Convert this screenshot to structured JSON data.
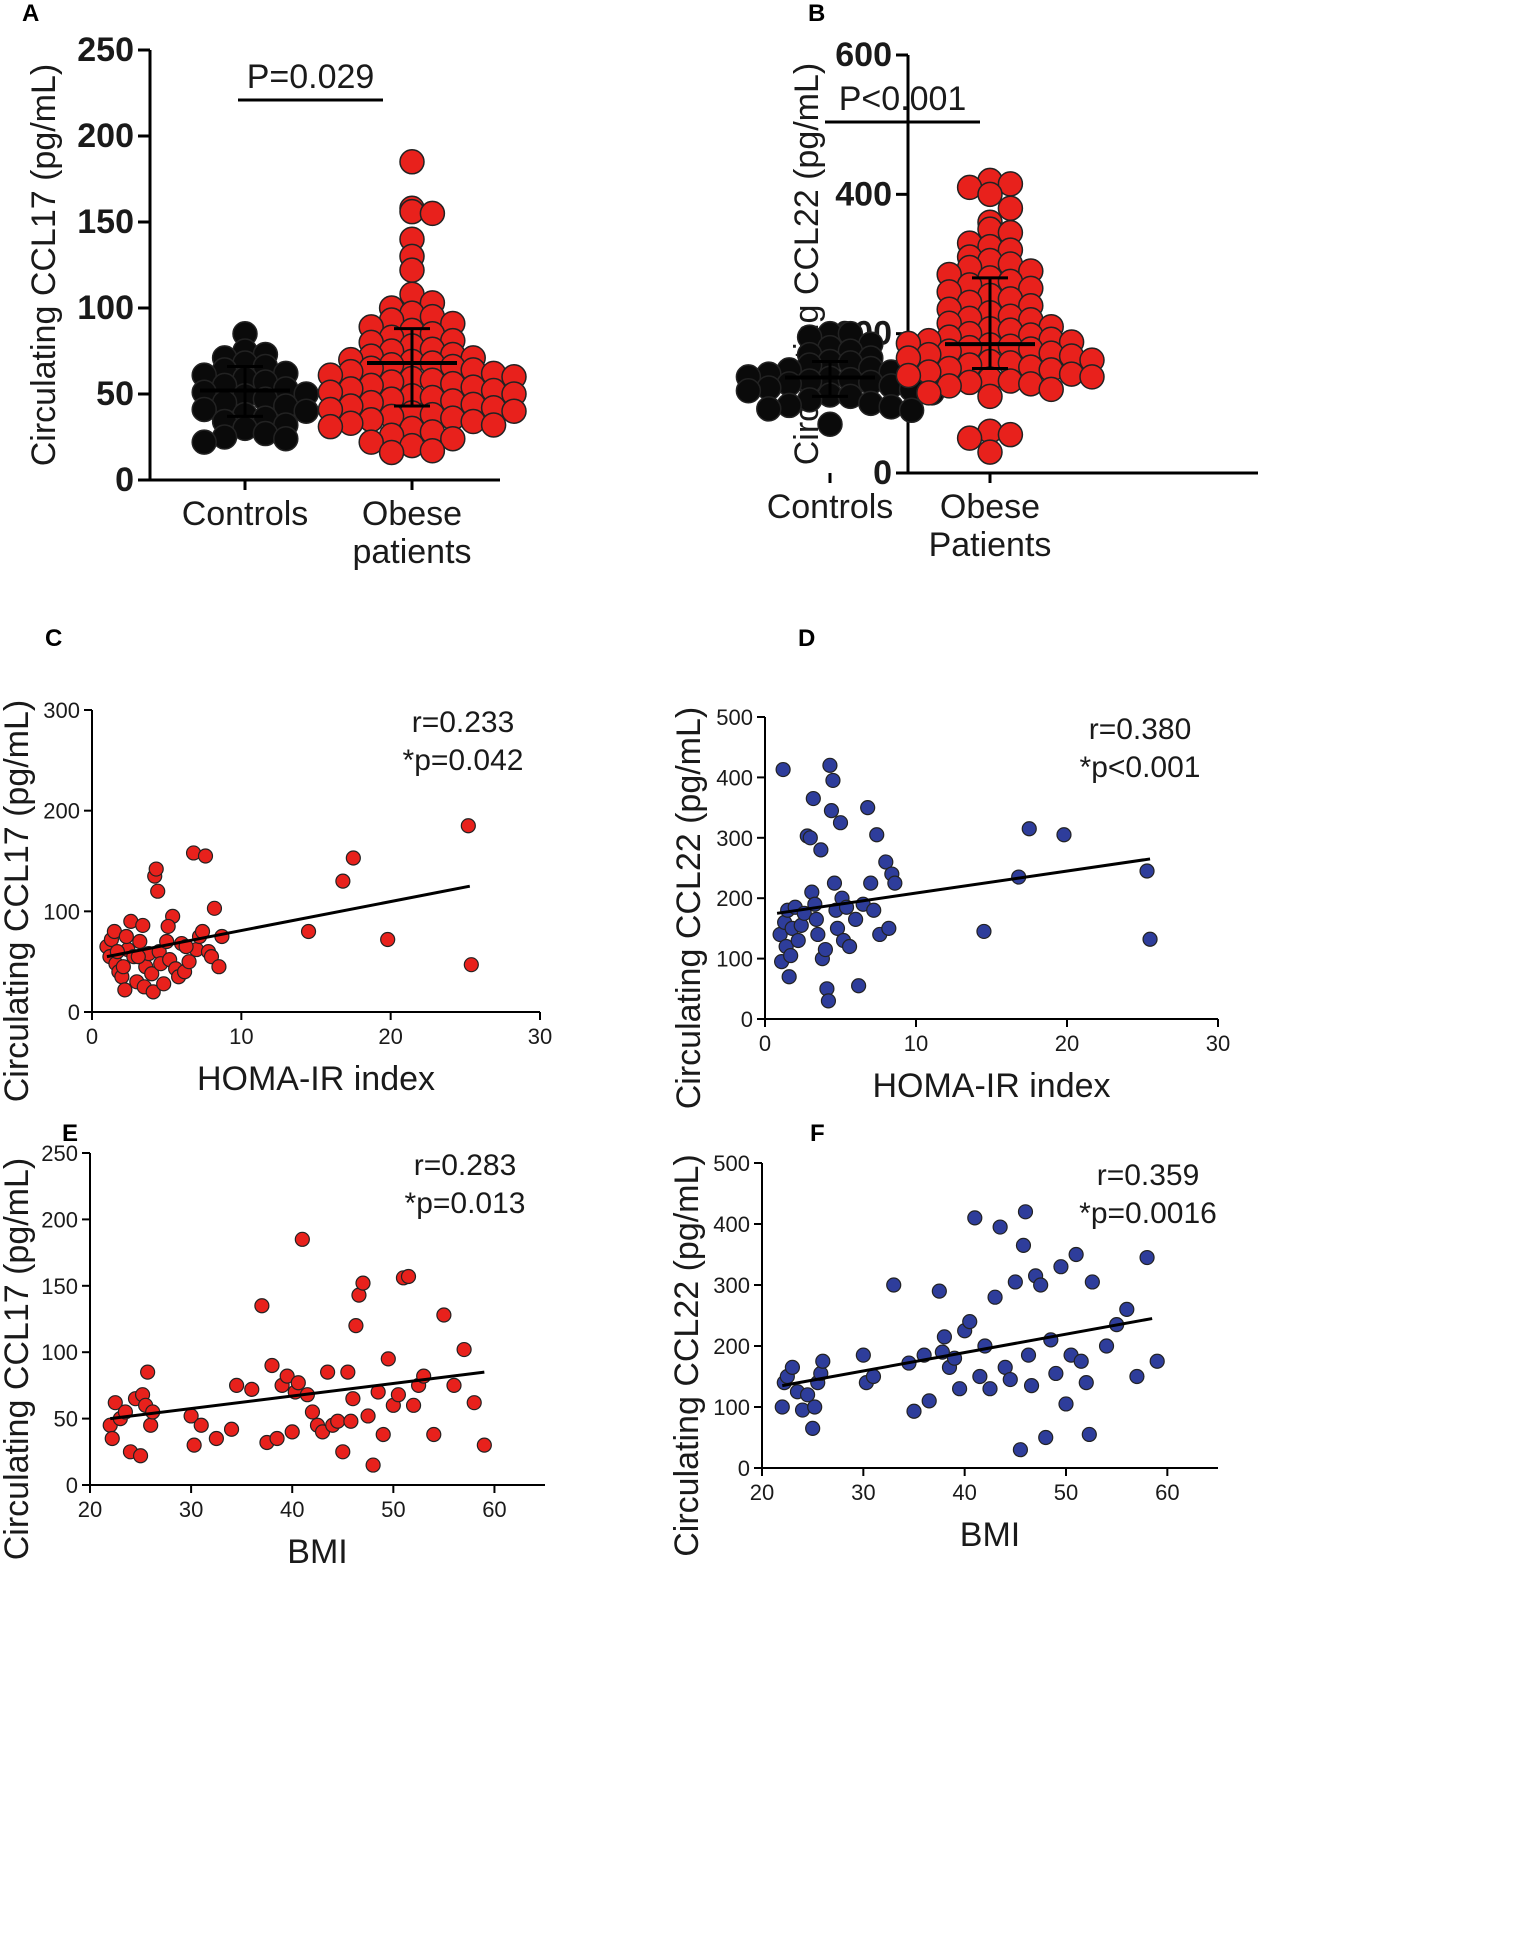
{
  "figure": {
    "panels": [
      "A",
      "B",
      "C",
      "D",
      "E",
      "F"
    ]
  },
  "colors": {
    "control": "#0a0a0a",
    "obese": "#e8211c",
    "ccl22_scatter": "#2e3d9b",
    "axis": "#000000"
  },
  "chart_data": [
    {
      "id": "A",
      "type": "scatter",
      "subtype": "dot-plot",
      "ylabel": "Circulating CCL17 (pg/mL)",
      "ylim": [
        0,
        250
      ],
      "yticks": [
        "0",
        "50",
        "100",
        "150",
        "200",
        "250"
      ],
      "categories": [
        "Controls",
        "Obese\npatients"
      ],
      "p_text": "P=0.029",
      "series": [
        {
          "name": "Controls",
          "color": "#0a0a0a",
          "median": 52,
          "iqr": [
            37,
            66
          ],
          "values": [
            85,
            75,
            73,
            71,
            68,
            66,
            64,
            62,
            61,
            59,
            57,
            55,
            53,
            51,
            50,
            49,
            47,
            45,
            43,
            41,
            40,
            38,
            36,
            34,
            32,
            30,
            27,
            25,
            24,
            22
          ]
        },
        {
          "name": "Obese patients",
          "color": "#e8211c",
          "median": 68,
          "iqr": [
            43,
            88
          ],
          "values": [
            185,
            158,
            156,
            155,
            140,
            130,
            122,
            108,
            103,
            100,
            97,
            95,
            93,
            91,
            89,
            87,
            85,
            83,
            81,
            80,
            78,
            76,
            75,
            73,
            72,
            71,
            70,
            69,
            68,
            67,
            66,
            65,
            64,
            63,
            62,
            61,
            60,
            59,
            58,
            57,
            56,
            55,
            54,
            53,
            52,
            51,
            50,
            49,
            48,
            47,
            46,
            45,
            44,
            43,
            42,
            41,
            40,
            39,
            38,
            37,
            36,
            35,
            34,
            33,
            32,
            31,
            30,
            28,
            26,
            24,
            22,
            20,
            17,
            16
          ]
        }
      ]
    },
    {
      "id": "B",
      "type": "scatter",
      "subtype": "dot-plot",
      "ylabel": "Circulating CCL22 (pg/mL)",
      "ylim": [
        0,
        600
      ],
      "yticks": [
        "0",
        "200",
        "400",
        "600"
      ],
      "categories": [
        "Controls",
        "Obese\nPatients"
      ],
      "p_text": "P<0.001",
      "series": [
        {
          "name": "Controls",
          "color": "#0a0a0a",
          "median": 137,
          "iqr": [
            110,
            160
          ],
          "values": [
            200,
            200,
            195,
            185,
            180,
            175,
            170,
            165,
            160,
            158,
            155,
            150,
            148,
            145,
            142,
            140,
            138,
            136,
            134,
            132,
            130,
            128,
            125,
            122,
            120,
            118,
            115,
            112,
            110,
            105,
            100,
            97,
            95,
            92,
            90,
            70
          ]
        },
        {
          "name": "Obese Patients",
          "color": "#e8211c",
          "median": 185,
          "iqr": [
            150,
            280
          ],
          "values": [
            420,
            415,
            410,
            400,
            380,
            360,
            350,
            345,
            330,
            325,
            320,
            310,
            305,
            300,
            295,
            290,
            285,
            280,
            275,
            270,
            265,
            260,
            255,
            250,
            245,
            240,
            235,
            230,
            225,
            222,
            220,
            215,
            210,
            207,
            205,
            200,
            198,
            195,
            192,
            190,
            188,
            186,
            184,
            182,
            180,
            178,
            175,
            172,
            170,
            168,
            165,
            162,
            160,
            158,
            155,
            152,
            150,
            148,
            145,
            142,
            140,
            138,
            135,
            132,
            130,
            128,
            125,
            120,
            115,
            110,
            60,
            55,
            50,
            30
          ]
        }
      ]
    },
    {
      "id": "C",
      "type": "scatter",
      "xlabel": "HOMA-IR index",
      "ylabel": "Circulating CCL17 (pg/mL)",
      "xlim": [
        0,
        30
      ],
      "ylim": [
        0,
        300
      ],
      "xticks": [
        "0",
        "10",
        "20",
        "30"
      ],
      "yticks": [
        "0",
        "100",
        "200",
        "300"
      ],
      "stat_r": "r=0.233",
      "stat_p": "*p=0.042",
      "color": "#e8211c",
      "fit": {
        "x": [
          1,
          25.3
        ],
        "y": [
          55,
          125
        ]
      },
      "points": [
        [
          1,
          65
        ],
        [
          1.2,
          55
        ],
        [
          1.3,
          72
        ],
        [
          1.5,
          80
        ],
        [
          1.6,
          48
        ],
        [
          1.8,
          40
        ],
        [
          2,
          35
        ],
        [
          2.2,
          22
        ],
        [
          2.4,
          62
        ],
        [
          2.6,
          90
        ],
        [
          2.8,
          55
        ],
        [
          3,
          30
        ],
        [
          3.2,
          70
        ],
        [
          3.4,
          86
        ],
        [
          3.5,
          25
        ],
        [
          3.6,
          45
        ],
        [
          3.8,
          58
        ],
        [
          4,
          38
        ],
        [
          4.1,
          20
        ],
        [
          4.2,
          135
        ],
        [
          4.3,
          142
        ],
        [
          4.4,
          120
        ],
        [
          4.5,
          60
        ],
        [
          4.6,
          48
        ],
        [
          4.8,
          28
        ],
        [
          5,
          70
        ],
        [
          5.2,
          52
        ],
        [
          5.4,
          95
        ],
        [
          5.6,
          43
        ],
        [
          5.8,
          35
        ],
        [
          6,
          68
        ],
        [
          6.2,
          40
        ],
        [
          6.5,
          50
        ],
        [
          6.8,
          158
        ],
        [
          7,
          62
        ],
        [
          7.2,
          75
        ],
        [
          7.4,
          80
        ],
        [
          7.6,
          155
        ],
        [
          7.8,
          60
        ],
        [
          8,
          55
        ],
        [
          8.2,
          103
        ],
        [
          8.5,
          45
        ],
        [
          8.7,
          75
        ],
        [
          2.3,
          75
        ],
        [
          3.1,
          55
        ],
        [
          1.7,
          60
        ],
        [
          2.1,
          45
        ],
        [
          5.1,
          85
        ],
        [
          6.3,
          65
        ],
        [
          14.5,
          80
        ],
        [
          16.8,
          130
        ],
        [
          17.5,
          153
        ],
        [
          19.8,
          72
        ],
        [
          25.2,
          185
        ],
        [
          25.4,
          47
        ]
      ]
    },
    {
      "id": "D",
      "type": "scatter",
      "xlabel": "HOMA-IR index",
      "ylabel": "Circulating CCL22 (pg/mL)",
      "xlim": [
        0,
        30
      ],
      "ylim": [
        0,
        500
      ],
      "xticks": [
        "0",
        "10",
        "20",
        "30"
      ],
      "yticks": [
        "0",
        "100",
        "200",
        "300",
        "400",
        "500"
      ],
      "stat_r": "r=0.380",
      "stat_p": "*p<0.001",
      "color": "#2e3d9b",
      "fit": {
        "x": [
          0.8,
          25.5
        ],
        "y": [
          175,
          265
        ]
      },
      "points": [
        [
          1,
          140
        ],
        [
          1.1,
          95
        ],
        [
          1.2,
          413
        ],
        [
          1.3,
          160
        ],
        [
          1.4,
          120
        ],
        [
          1.5,
          180
        ],
        [
          1.6,
          70
        ],
        [
          1.7,
          105
        ],
        [
          1.8,
          150
        ],
        [
          2,
          185
        ],
        [
          2.2,
          130
        ],
        [
          2.4,
          155
        ],
        [
          2.6,
          175
        ],
        [
          2.8,
          303
        ],
        [
          3,
          300
        ],
        [
          3.1,
          210
        ],
        [
          3.2,
          365
        ],
        [
          3.3,
          190
        ],
        [
          3.4,
          165
        ],
        [
          3.5,
          140
        ],
        [
          3.7,
          280
        ],
        [
          3.8,
          100
        ],
        [
          4,
          115
        ],
        [
          4.1,
          50
        ],
        [
          4.2,
          30
        ],
        [
          4.3,
          420
        ],
        [
          4.4,
          345
        ],
        [
          4.5,
          395
        ],
        [
          4.6,
          225
        ],
        [
          4.7,
          180
        ],
        [
          4.8,
          150
        ],
        [
          5,
          325
        ],
        [
          5.1,
          200
        ],
        [
          5.2,
          130
        ],
        [
          5.4,
          185
        ],
        [
          5.6,
          120
        ],
        [
          6,
          165
        ],
        [
          6.2,
          55
        ],
        [
          6.5,
          190
        ],
        [
          6.8,
          350
        ],
        [
          7,
          225
        ],
        [
          7.2,
          180
        ],
        [
          7.4,
          305
        ],
        [
          7.6,
          140
        ],
        [
          8,
          260
        ],
        [
          8.2,
          150
        ],
        [
          8.4,
          240
        ],
        [
          8.6,
          225
        ],
        [
          14.5,
          145
        ],
        [
          16.8,
          235
        ],
        [
          17.5,
          315
        ],
        [
          19.8,
          305
        ],
        [
          25.3,
          245
        ],
        [
          25.5,
          132
        ]
      ]
    },
    {
      "id": "E",
      "type": "scatter",
      "xlabel": "BMI",
      "ylabel": "Circulating CCL17 (pg/mL)",
      "xlim": [
        20,
        65
      ],
      "ylim": [
        0,
        250
      ],
      "xticks": [
        "20",
        "30",
        "40",
        "50",
        "60"
      ],
      "yticks": [
        "0",
        "50",
        "100",
        "150",
        "200",
        "250"
      ],
      "stat_r": "r=0.283",
      "stat_p": "*p=0.013",
      "color": "#e8211c",
      "fit": {
        "x": [
          22,
          59
        ],
        "y": [
          50,
          85
        ]
      },
      "points": [
        [
          22,
          45
        ],
        [
          22.2,
          35
        ],
        [
          22.5,
          62
        ],
        [
          23,
          50
        ],
        [
          23.5,
          55
        ],
        [
          24,
          25
        ],
        [
          24.5,
          65
        ],
        [
          25,
          22
        ],
        [
          25.2,
          68
        ],
        [
          25.5,
          60
        ],
        [
          25.7,
          85
        ],
        [
          26,
          45
        ],
        [
          26.2,
          55
        ],
        [
          30,
          52
        ],
        [
          30.3,
          30
        ],
        [
          31,
          45
        ],
        [
          32.5,
          35
        ],
        [
          34,
          42
        ],
        [
          34.5,
          75
        ],
        [
          36,
          72
        ],
        [
          37,
          135
        ],
        [
          37.5,
          32
        ],
        [
          38,
          90
        ],
        [
          38.5,
          35
        ],
        [
          39,
          75
        ],
        [
          39.5,
          82
        ],
        [
          40,
          40
        ],
        [
          40.3,
          70
        ],
        [
          40.6,
          77
        ],
        [
          41,
          185
        ],
        [
          41.5,
          68
        ],
        [
          42,
          55
        ],
        [
          42.5,
          45
        ],
        [
          43,
          40
        ],
        [
          43.5,
          85
        ],
        [
          44,
          45
        ],
        [
          44.5,
          48
        ],
        [
          45,
          25
        ],
        [
          45.5,
          85
        ],
        [
          45.8,
          48
        ],
        [
          46,
          65
        ],
        [
          46.3,
          120
        ],
        [
          46.6,
          143
        ],
        [
          47,
          152
        ],
        [
          47.5,
          52
        ],
        [
          48,
          15
        ],
        [
          48.5,
          70
        ],
        [
          49,
          38
        ],
        [
          49.5,
          95
        ],
        [
          50,
          60
        ],
        [
          50.5,
          68
        ],
        [
          51,
          156
        ],
        [
          51.5,
          157
        ],
        [
          52,
          60
        ],
        [
          52.5,
          75
        ],
        [
          53,
          82
        ],
        [
          54,
          38
        ],
        [
          55,
          128
        ],
        [
          56,
          75
        ],
        [
          57,
          102
        ],
        [
          58,
          62
        ],
        [
          59,
          30
        ]
      ]
    },
    {
      "id": "F",
      "type": "scatter",
      "xlabel": "BMI",
      "ylabel": "Circulating CCL22 (pg/mL)",
      "xlim": [
        20,
        65
      ],
      "ylim": [
        0,
        500
      ],
      "xticks": [
        "20",
        "30",
        "40",
        "50",
        "60"
      ],
      "yticks": [
        "0",
        "100",
        "200",
        "300",
        "400",
        "500"
      ],
      "stat_r": "r=0.359",
      "stat_p": "*p=0.0016",
      "color": "#2e3d9b",
      "fit": {
        "x": [
          22,
          58.5
        ],
        "y": [
          135,
          245
        ]
      },
      "points": [
        [
          22,
          100
        ],
        [
          22.2,
          140
        ],
        [
          22.5,
          150
        ],
        [
          23,
          165
        ],
        [
          23.5,
          125
        ],
        [
          24,
          95
        ],
        [
          24.5,
          120
        ],
        [
          25,
          65
        ],
        [
          25.2,
          100
        ],
        [
          25.5,
          140
        ],
        [
          25.8,
          155
        ],
        [
          26,
          175
        ],
        [
          30,
          185
        ],
        [
          30.3,
          140
        ],
        [
          31,
          150
        ],
        [
          33,
          300
        ],
        [
          34.5,
          172
        ],
        [
          35,
          93
        ],
        [
          36,
          185
        ],
        [
          36.5,
          110
        ],
        [
          37.5,
          290
        ],
        [
          37.8,
          190
        ],
        [
          38,
          215
        ],
        [
          38.5,
          165
        ],
        [
          39,
          180
        ],
        [
          39.5,
          130
        ],
        [
          40,
          225
        ],
        [
          40.5,
          240
        ],
        [
          41,
          410
        ],
        [
          41.5,
          150
        ],
        [
          42,
          200
        ],
        [
          42.5,
          130
        ],
        [
          43,
          280
        ],
        [
          43.5,
          395
        ],
        [
          44,
          165
        ],
        [
          44.5,
          145
        ],
        [
          45,
          305
        ],
        [
          45.5,
          30
        ],
        [
          45.8,
          365
        ],
        [
          46,
          420
        ],
        [
          46.3,
          185
        ],
        [
          46.6,
          135
        ],
        [
          47,
          315
        ],
        [
          47.5,
          300
        ],
        [
          48,
          50
        ],
        [
          48.5,
          210
        ],
        [
          49,
          155
        ],
        [
          49.5,
          330
        ],
        [
          50,
          105
        ],
        [
          50.5,
          185
        ],
        [
          51,
          350
        ],
        [
          51.5,
          175
        ],
        [
          52,
          140
        ],
        [
          52.3,
          55
        ],
        [
          52.6,
          305
        ],
        [
          54,
          200
        ],
        [
          55,
          235
        ],
        [
          56,
          260
        ],
        [
          57,
          150
        ],
        [
          58,
          345
        ],
        [
          59,
          175
        ]
      ]
    }
  ]
}
